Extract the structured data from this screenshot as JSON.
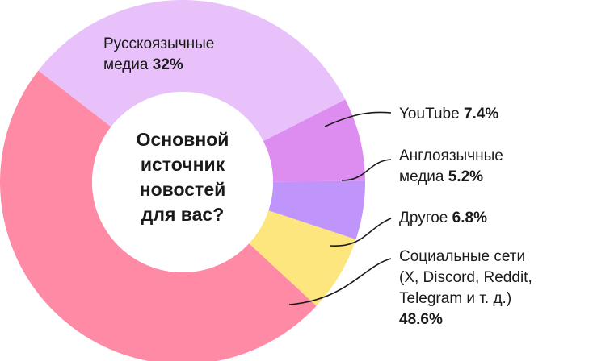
{
  "chart_data": {
    "type": "donut",
    "title": "Основной источник новостей для вас?",
    "center_lines": [
      "Основной",
      "источник",
      "новостей",
      "для вас?"
    ],
    "unit": "%",
    "slices": [
      {
        "label": "YouTube",
        "value": 7.4,
        "value_text": "7.4%",
        "color": "#dd8cf0"
      },
      {
        "label": "Англоязычные медиа",
        "value": 5.2,
        "value_text": "5.2%",
        "color": "#bf95fb"
      },
      {
        "label": "Другое",
        "value": 6.8,
        "value_text": "6.8%",
        "color": "#fde67e"
      },
      {
        "label": "Социальные сети (X, Discord, Reddit, Telegram и т. д.)",
        "value": 48.6,
        "value_text": "48.6%",
        "color": "#fe8aa6"
      },
      {
        "label": "Русскоязычные медиа",
        "value": 32,
        "value_text": "32%",
        "color": "#e8c1fb"
      }
    ]
  },
  "labels": {
    "russian": {
      "line1": "Русскоязычные",
      "line2": "медиа",
      "value": "32%"
    },
    "youtube": {
      "name": "YouTube",
      "value": "7.4%"
    },
    "english": {
      "line1": "Англоязычные",
      "line2": "медиа",
      "value": "5.2%"
    },
    "other": {
      "name": "Другое",
      "value": "6.8%"
    },
    "social": {
      "line1": "Социальные сети",
      "line2": "(X, Discord, Reddit,",
      "line3": "Telegram и т. д.)",
      "value": "48.6%"
    }
  }
}
